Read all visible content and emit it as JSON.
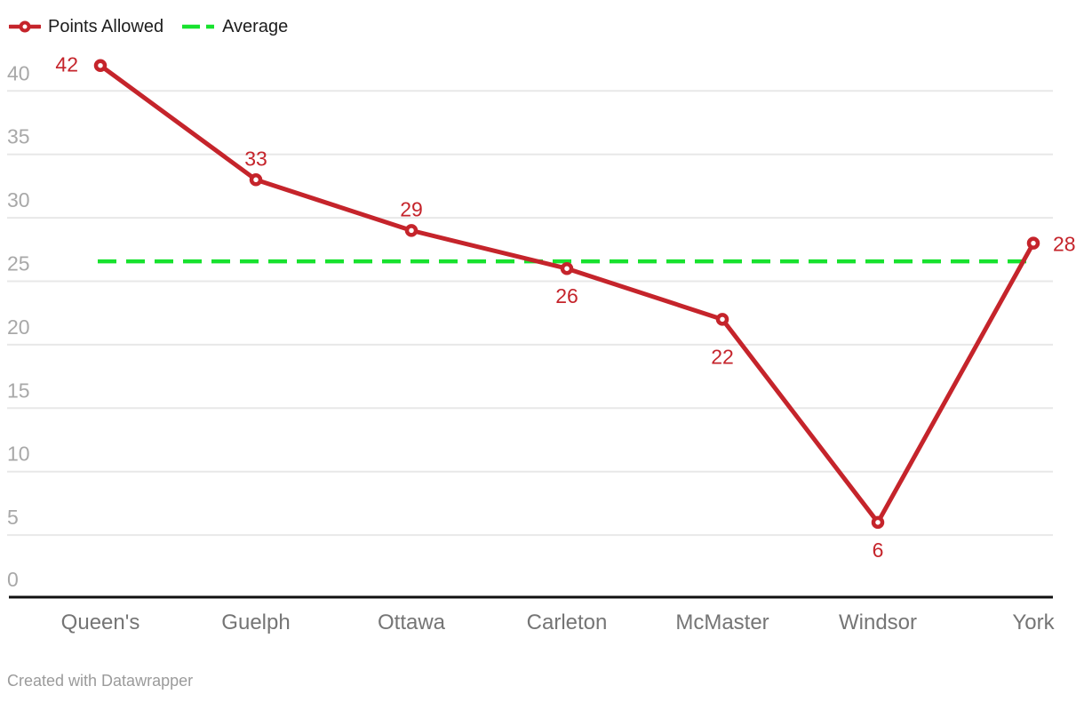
{
  "legend": [
    {
      "label": "Points Allowed",
      "swatch": "line-with-circle-marker",
      "color": "#c5242b"
    },
    {
      "label": "Average",
      "swatch": "dashed-line",
      "color": "#17e22e"
    }
  ],
  "chart_data": {
    "type": "line",
    "categories": [
      "Queen's",
      "Guelph",
      "Ottawa",
      "Carleton",
      "McMaster",
      "Windsor",
      "York"
    ],
    "series": [
      {
        "name": "Points Allowed",
        "values": [
          42,
          33,
          29,
          26,
          22,
          6,
          28
        ]
      }
    ],
    "data_labels": [
      "42",
      "33",
      "29",
      "26",
      "22",
      "6",
      "28"
    ],
    "data_label_positions": [
      "left",
      "above",
      "above",
      "below",
      "below-far",
      "below",
      "right"
    ],
    "average_line": {
      "name": "Average",
      "value": 26.57,
      "style": "dashed"
    },
    "yticks": [
      0,
      5,
      10,
      15,
      20,
      25,
      30,
      35,
      40
    ],
    "ylim": [
      0,
      42
    ],
    "xlabel": "",
    "ylabel": "",
    "grid": true,
    "legend_position": "top-left"
  },
  "footer": {
    "credit": "Created with Datawrapper"
  },
  "colors": {
    "series": "#c5242b",
    "average": "#17e22e",
    "grid": "#e8e8e8",
    "axis": "#111111",
    "ytick_label": "#a8a8a8",
    "xtick_label": "#757575",
    "data_label": "#c5242b",
    "legend_text": "#1d1d1d",
    "footer_text": "#9b9b9b",
    "background": "#ffffff",
    "marker_fill": "#ffffff"
  }
}
